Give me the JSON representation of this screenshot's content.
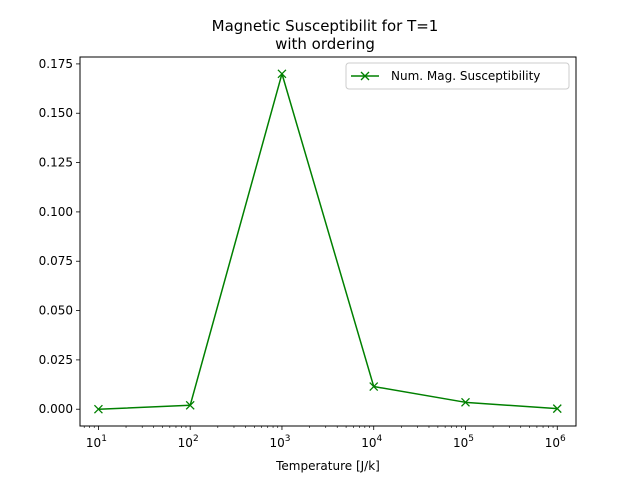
{
  "chart_data": {
    "type": "line",
    "title_line1": "Magnetic Susceptibilit for T=1",
    "title_line2": "with ordering",
    "xlabel": "Temperature [J/k]",
    "ylabel": "",
    "xscale": "log",
    "xlim": [
      6.3,
      1600000
    ],
    "ylim": [
      -0.0085,
      0.1785
    ],
    "xticks": [
      {
        "value": 10,
        "base": "10",
        "exp": "1"
      },
      {
        "value": 100,
        "base": "10",
        "exp": "2"
      },
      {
        "value": 1000,
        "base": "10",
        "exp": "3"
      },
      {
        "value": 10000,
        "base": "10",
        "exp": "4"
      },
      {
        "value": 100000,
        "base": "10",
        "exp": "5"
      },
      {
        "value": 1000000,
        "base": "10",
        "exp": "6"
      }
    ],
    "yticks": [
      {
        "value": 0.0,
        "label": "0.000"
      },
      {
        "value": 0.025,
        "label": "0.025"
      },
      {
        "value": 0.05,
        "label": "0.050"
      },
      {
        "value": 0.075,
        "label": "0.075"
      },
      {
        "value": 0.1,
        "label": "0.100"
      },
      {
        "value": 0.125,
        "label": "0.125"
      },
      {
        "value": 0.15,
        "label": "0.150"
      },
      {
        "value": 0.175,
        "label": "0.175"
      }
    ],
    "grid": false,
    "legend_position": "top-right",
    "series": [
      {
        "name": "Num. Mag. Susceptibility",
        "color": "#008000",
        "marker": "x",
        "x": [
          10,
          100,
          1000,
          10000,
          100000,
          1000000
        ],
        "y": [
          0.0,
          0.002,
          0.17,
          0.0115,
          0.0035,
          0.0003
        ]
      }
    ]
  }
}
